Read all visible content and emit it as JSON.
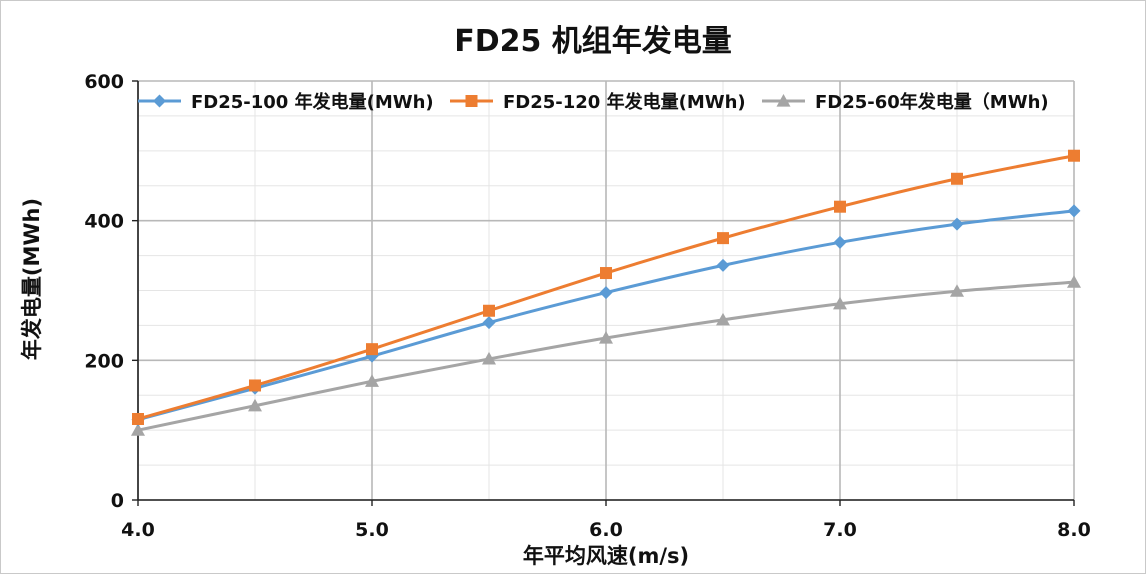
{
  "chart_data": {
    "type": "line",
    "title": "FD25 机组年发电量",
    "xlabel": "年平均风速(m/s)",
    "ylabel": "年发电量(MWh)",
    "x": [
      4.0,
      4.5,
      5.0,
      5.5,
      6.0,
      6.5,
      7.0,
      7.5,
      8.0
    ],
    "xlim": [
      4.0,
      8.0
    ],
    "ylim": [
      0,
      600
    ],
    "x_ticks": [
      "4.0",
      "5.0",
      "6.0",
      "7.0",
      "8.0"
    ],
    "x_tick_values": [
      4,
      5,
      6,
      7,
      8
    ],
    "y_ticks": [
      "0",
      "200",
      "400",
      "600"
    ],
    "y_tick_values": [
      0,
      200,
      400,
      600
    ],
    "grid": true,
    "legend_position": "top",
    "series": [
      {
        "name": "FD25-100 年发电量(MWh)",
        "color": "#5b9bd5",
        "marker": "diamond",
        "values": [
          115,
          160,
          206,
          254,
          297,
          336,
          369,
          395,
          414
        ]
      },
      {
        "name": "FD25-120 年发电量(MWh)",
        "color": "#ed7d31",
        "marker": "square",
        "values": [
          116,
          164,
          216,
          271,
          325,
          375,
          420,
          460,
          493
        ]
      },
      {
        "name": "FD25-60年发电量（MWh)",
        "color": "#a5a5a5",
        "marker": "triangle",
        "values": [
          100,
          135,
          170,
          202,
          232,
          258,
          281,
          299,
          312
        ]
      }
    ]
  }
}
